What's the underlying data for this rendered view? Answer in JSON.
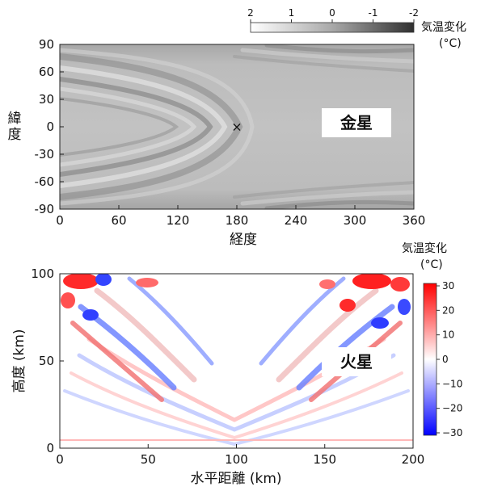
{
  "chart_data": [
    {
      "type": "heatmap",
      "label": "金星",
      "xlabel": "経度",
      "ylabel": "緯度",
      "xlim": [
        0,
        360
      ],
      "ylim": [
        -90,
        90
      ],
      "xticks": [
        0,
        60,
        120,
        180,
        240,
        300,
        360
      ],
      "yticks": [
        90,
        60,
        30,
        0,
        -30,
        -60,
        -90
      ],
      "colorbar": {
        "title_line1": "気温変化",
        "title_line2": "(°C)",
        "orientation": "horizontal",
        "placement": "top-right",
        "ticks": [
          "2",
          "1",
          "0",
          "-1",
          "-2"
        ],
        "range": [
          -2,
          2
        ],
        "colors": [
          "#ffffff",
          "#a9a9a9",
          "#303030"
        ]
      },
      "marker": {
        "symbol": "×",
        "x": 180,
        "y": 0
      },
      "grid": false
    },
    {
      "type": "heatmap",
      "label": "火星",
      "xlabel": "水平距離 (km)",
      "ylabel": "高度 (km)",
      "xlim": [
        0,
        200
      ],
      "ylim": [
        0,
        100
      ],
      "xticks": [
        0,
        50,
        100,
        150,
        200
      ],
      "yticks": [
        100,
        50,
        0
      ],
      "colorbar": {
        "title_line1": "気温変化",
        "title_line2": "(°C)",
        "orientation": "vertical",
        "placement": "right",
        "ticks": [
          "30",
          "20",
          "10",
          "0",
          "−10",
          "−20",
          "−30"
        ],
        "range": [
          -30,
          30
        ],
        "colors": [
          "#0000ff",
          "#ffffff",
          "#ff0000"
        ]
      },
      "grid": false
    }
  ]
}
